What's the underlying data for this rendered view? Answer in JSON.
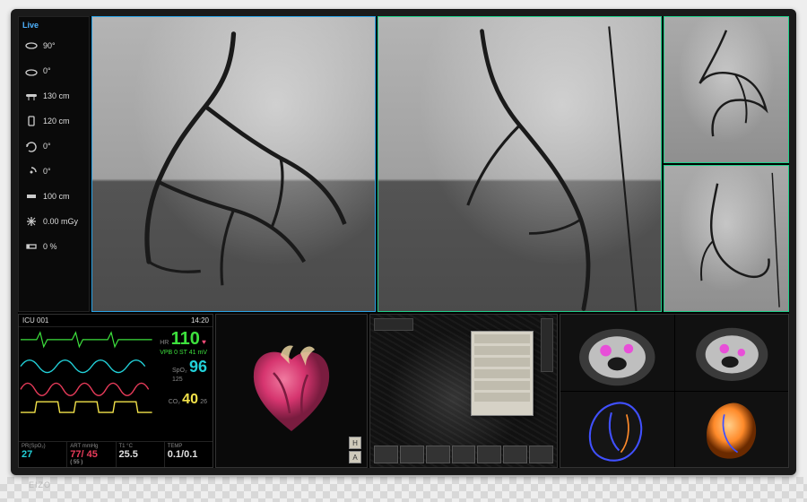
{
  "brand": "EIZO",
  "live_label": "Live",
  "controls": [
    {
      "icon": "gantry-angle",
      "value": "90°"
    },
    {
      "icon": "detector-angle",
      "value": "0°"
    },
    {
      "icon": "table-height",
      "value": "130 cm"
    },
    {
      "icon": "sid",
      "value": "120 cm"
    },
    {
      "icon": "c-arm-rot",
      "value": "0°"
    },
    {
      "icon": "c-arm-tilt",
      "value": "0°"
    },
    {
      "icon": "collimator",
      "value": "100 cm"
    },
    {
      "icon": "dose",
      "value": "0.00 mGy"
    },
    {
      "icon": "filter",
      "value": "0 %"
    }
  ],
  "angio_borders": {
    "main1": "#2aa3e6",
    "main2": "#1fcf8a",
    "mini": "#1fcf8a"
  },
  "vitals": {
    "room": "ICU 001",
    "time": "14:20",
    "hr": {
      "label": "HR",
      "value": "110",
      "unit": "bpm",
      "color": "#3de03d",
      "aux": "VPB 0  ST 41 mV"
    },
    "spo2": {
      "label": "SpO₂",
      "value": "96",
      "sub": "125",
      "color": "#22d0d8"
    },
    "co2": {
      "label": "CO₂",
      "value": "40",
      "sub": "26",
      "color": "#f2e24a"
    },
    "footer": [
      {
        "title": "PR(SpO₂)",
        "value": "27",
        "color": "#22d0d8"
      },
      {
        "title": "ART mmHg",
        "value": "77/ 45",
        "sub": "( 55 )",
        "color": "#e83b5a"
      },
      {
        "title": "T1 °C",
        "value": "25.5",
        "color": "#e0e0e0"
      },
      {
        "title": "TEMP",
        "value": "0.1/0.1",
        "color": "#e0e0e0"
      }
    ],
    "wave_colors": {
      "ecg": "#3de03d",
      "pleth": "#22d0d8",
      "art": "#e83b5a",
      "co2": "#f2e24a"
    }
  },
  "heart_colors": {
    "body": "#d6356f",
    "shadow": "#7a1c3f",
    "highlight": "#f07ba0",
    "vessel": "#e8d3a0"
  },
  "workstation": {
    "dialog_rows": 6,
    "thumbs": 7,
    "letters": [
      "H",
      "A"
    ]
  },
  "ct": {
    "tissue": "#bfbfbf",
    "bg": "#0a0a0a",
    "contrast": "#e84fd8",
    "vessel1": "#4050ff",
    "vessel2": "#ff8a2a",
    "quads": [
      "axial",
      "axial2",
      "recon-blue",
      "recon-orange"
    ]
  }
}
